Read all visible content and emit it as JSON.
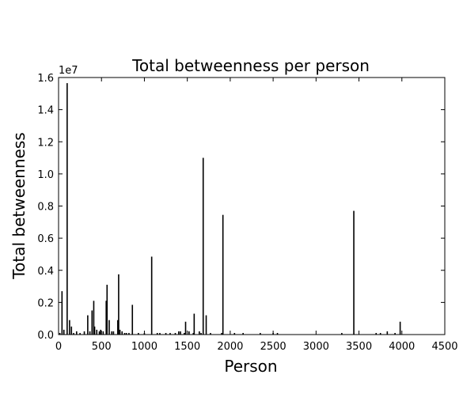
{
  "chart_data": {
    "type": "bar",
    "title": "Total betweenness per person",
    "xlabel": "Person",
    "ylabel": "Total betweenness",
    "y_offset_label": "1e7",
    "xlim": [
      0,
      4500
    ],
    "ylim": [
      0,
      1.6
    ],
    "x_ticks": [
      0,
      500,
      1000,
      1500,
      2000,
      2500,
      3000,
      3500,
      4000,
      4500
    ],
    "x_tick_labels": [
      "0",
      "500",
      "1000",
      "1500",
      "2000",
      "2500",
      "3000",
      "3500",
      "4000",
      "4500"
    ],
    "y_ticks": [
      0.0,
      0.2,
      0.4,
      0.6,
      0.8,
      1.0,
      1.2,
      1.4,
      1.6
    ],
    "y_tick_labels": [
      "0.0",
      "0.2",
      "0.4",
      "0.6",
      "0.8",
      "1.0",
      "1.2",
      "1.4",
      "1.6"
    ],
    "grid": false,
    "legend": "none",
    "bar_color": "#000000",
    "x": [
      15,
      40,
      62,
      100,
      128,
      150,
      175,
      210,
      250,
      300,
      340,
      365,
      390,
      410,
      420,
      445,
      475,
      490,
      520,
      555,
      565,
      590,
      620,
      640,
      690,
      700,
      715,
      740,
      770,
      790,
      820,
      860,
      930,
      1000,
      1085,
      1150,
      1180,
      1250,
      1300,
      1360,
      1400,
      1420,
      1465,
      1480,
      1520,
      1570,
      1580,
      1640,
      1660,
      1685,
      1720,
      1770,
      1900,
      1915,
      2050,
      2150,
      2350,
      2500,
      2550,
      3300,
      3440,
      3700,
      3750,
      3830,
      3920,
      3980
    ],
    "values": [
      0.01,
      0.27,
      0.03,
      1.565,
      0.09,
      0.05,
      0.01,
      0.02,
      0.01,
      0.02,
      0.12,
      0.02,
      0.15,
      0.21,
      0.05,
      0.03,
      0.02,
      0.03,
      0.02,
      0.21,
      0.31,
      0.09,
      0.02,
      0.02,
      0.09,
      0.375,
      0.03,
      0.02,
      0.01,
      0.01,
      0.01,
      0.185,
      0.01,
      0.01,
      0.485,
      0.01,
      0.01,
      0.01,
      0.01,
      0.01,
      0.02,
      0.02,
      0.01,
      0.08,
      0.02,
      0.01,
      0.13,
      0.02,
      0.01,
      1.1,
      0.12,
      0.01,
      0.01,
      0.745,
      0.01,
      0.01,
      0.01,
      0.01,
      0.01,
      0.01,
      0.77,
      0.01,
      0.01,
      0.02,
      0.01,
      0.08
    ]
  }
}
